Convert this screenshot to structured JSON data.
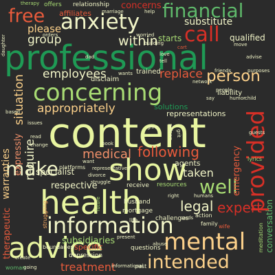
{
  "palette": {
    "background": "#2b2b2b",
    "pale_yellow_green": "#e8f5a0",
    "cream": "#f2f5c8",
    "light_green": "#a9dc74",
    "green": "#5fb96b",
    "dark_green": "#1f9a55",
    "red_orange": "#e85b3c",
    "salmon": "#f1906a",
    "red": "#d73027",
    "light_orange": "#fbd08a",
    "orange": "#fdae61"
  },
  "words": {
    "content": "content",
    "professional": "professional",
    "health": "health",
    "advice": "advice",
    "information": "information",
    "show": "show",
    "concerning": "concerning",
    "anxiety": "anxiety",
    "mental": "mental",
    "intended": "intended",
    "provided": "provided",
    "financial": "financial",
    "free": "free",
    "call": "call",
    "well": "well",
    "make": "make",
    "legal": "legal",
    "expert": "expert",
    "person": "person",
    "treatment": "treatment",
    "medical": "medical",
    "employees": "employees",
    "appropriately": "appropriately",
    "following": "following",
    "require": "require",
    "replace": "replace",
    "situation": "situation",
    "within": "within",
    "group": "group",
    "please": "please",
    "substitute": "substitute",
    "concerns": "concerns",
    "affiliates": "affiliates",
    "warranties": "warranties",
    "therapeutic": "therapeutic",
    "emergency": "emergency",
    "taken": "taken",
    "respective": "respective",
    "expressly": "expressly",
    "subsidiaries": "subsidiaries",
    "starts": "starts",
    "qualified": "qualified",
    "solutions": "solutions",
    "representations": "representations",
    "conversation": "conversation",
    "specialist": "specialist",
    "specific": "specific",
    "agents": "agents",
    "liability": "liability",
    "resources": "resources",
    "disclaim": "disclaim",
    "trained": "trained",
    "offers": "offers",
    "relationship": "relationship",
    "marriage": "marriage",
    "therapy": "therapy",
    "help": "help",
    "orders": "orders",
    "depression": "depression",
    "challenges": "challenges",
    "boundaries": "boundaries",
    "husband": "husband",
    "mortgage": "mortgage",
    "questions": "questions",
    "informational": "informational",
    "create": "create",
    "going": "going",
    "woman": "woman",
    "family": "family",
    "wife": "wife",
    "life": "life",
    "past": "past",
    "abuse": "abuse",
    "meditation": "meditation",
    "struggling": "struggling",
    "platforms": "platforms",
    "representatives": "representatives",
    "divorce": "divorce",
    "future": "future",
    "receive": "receive",
    "action": "action",
    "humans": "humans",
    "lyrics": "lyrics",
    "people": "people",
    "network": "network",
    "friends": "friends",
    "purposes": "purposes",
    "building": "building",
    "worried": "worried",
    "move": "move",
    "cart": "cart",
    "love": "love",
    "tell": "tell",
    "dad": "dad",
    "daughter": "daughter",
    "based": "based",
    "issues": "issues",
    "change": "change",
    "read": "read",
    "give": "give",
    "book": "book",
    "want": "want",
    "struggle": "struggle",
    "cards": "cards",
    "present": "present",
    "guests": "guests",
    "humor": "humor",
    "child": "child",
    "say": "say",
    "right": "right",
    "wants": "wants",
    "advise": "advise",
    "grit": "grit",
    "pillows": "pillows"
  }
}
